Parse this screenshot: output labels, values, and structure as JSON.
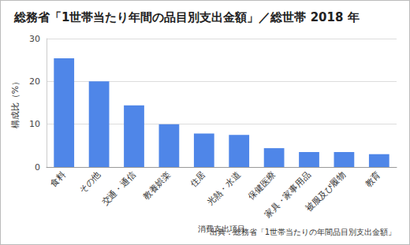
{
  "chart_data": {
    "type": "bar",
    "title": "総務省「1世帯当たり年間の品目別支出金額」／総世帯 2018 年",
    "x_label": "消費支出項目",
    "y_label": "構成比（%）",
    "source": "出典：総務省「1世帯当たりの年間品目別支出金額」",
    "categories": [
      "食料",
      "その他",
      "交通・通信",
      "教養娯楽",
      "住居",
      "光熱・水道",
      "保健医療",
      "家具・家事用品",
      "被服及び履物",
      "教育"
    ],
    "values": [
      25.4,
      20.0,
      14.4,
      10.0,
      7.8,
      7.5,
      4.4,
      3.5,
      3.5,
      3.0
    ],
    "color": "#4f86e8",
    "ylim": [
      0,
      30
    ],
    "yticks": [
      0,
      10,
      20,
      30
    ],
    "grid": true
  }
}
